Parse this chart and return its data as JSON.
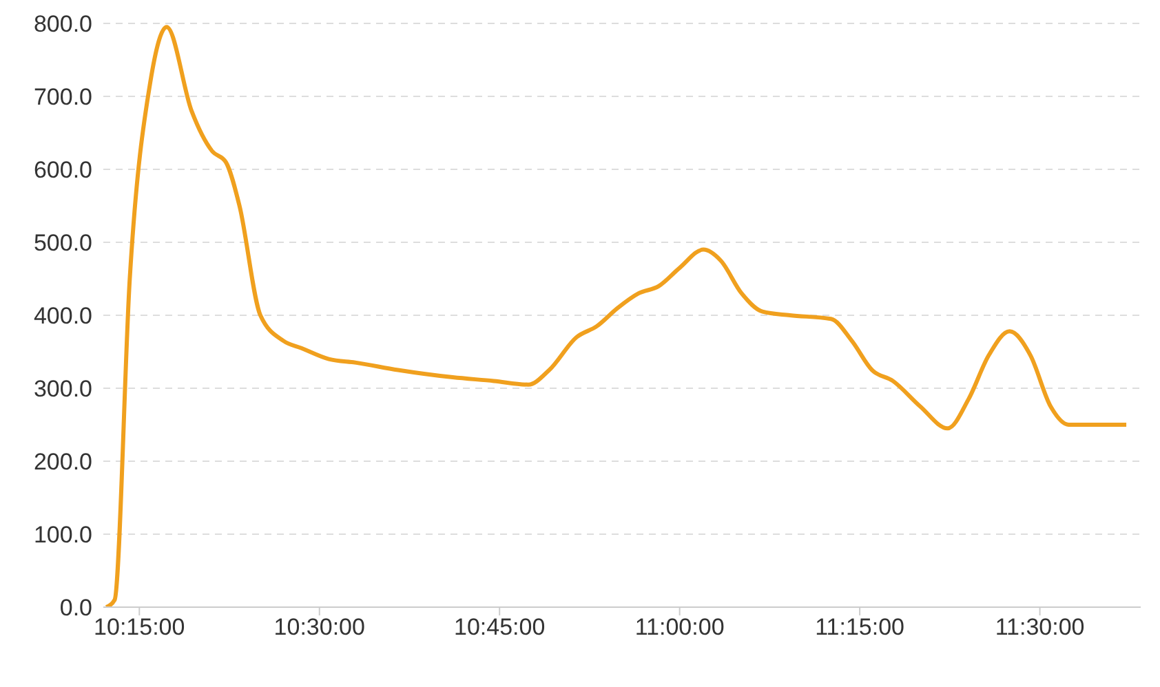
{
  "chart_data": {
    "type": "line",
    "x": [
      10.204,
      10.2157,
      10.2367,
      10.2653,
      10.288,
      10.3225,
      10.351,
      10.37,
      10.389,
      10.418,
      10.45,
      10.475,
      10.513,
      10.551,
      10.609,
      10.685,
      10.742,
      10.79,
      10.819,
      10.857,
      10.885,
      10.914,
      10.943,
      10.971,
      11.0,
      11.033,
      11.057,
      11.086,
      11.115,
      11.153,
      11.21,
      11.239,
      11.267,
      11.296,
      11.334,
      11.372,
      11.401,
      11.429,
      11.458,
      11.487,
      11.515,
      11.54,
      11.582,
      11.62
    ],
    "series": [
      {
        "color": "#f0a01e",
        "values": [
          0,
          10,
          450,
          720,
          795,
          680,
          625,
          610,
          550,
          400,
          365,
          355,
          340,
          335,
          325,
          315,
          310,
          305,
          325,
          370,
          385,
          410,
          430,
          440,
          465,
          490,
          475,
          430,
          405,
          400,
          395,
          365,
          325,
          310,
          275,
          245,
          285,
          345,
          378,
          345,
          275,
          250,
          250,
          250
        ]
      }
    ],
    "xlim": [
      10.2,
      11.64
    ],
    "xticks": [
      {
        "value": 10.25,
        "label": "10:15:00"
      },
      {
        "value": 10.5,
        "label": "10:30:00"
      },
      {
        "value": 10.75,
        "label": "10:45:00"
      },
      {
        "value": 11,
        "label": "11:00:00"
      },
      {
        "value": 11.25,
        "label": "11:15:00"
      },
      {
        "value": 11.5,
        "label": "11:30:00"
      }
    ],
    "ylim": [
      0,
      800
    ],
    "yticks": [
      {
        "value": 0,
        "label": "0.0"
      },
      {
        "value": 100,
        "label": "100.0"
      },
      {
        "value": 200,
        "label": "200.0"
      },
      {
        "value": 300,
        "label": "300.0"
      },
      {
        "value": 400,
        "label": "400.0"
      },
      {
        "value": 500,
        "label": "500.0"
      },
      {
        "value": 600,
        "label": "600.0"
      },
      {
        "value": 700,
        "label": "700.0"
      },
      {
        "value": 800,
        "label": "800.0"
      }
    ],
    "grid": "y",
    "legend": false,
    "marker": "none",
    "line_style": "solid"
  }
}
